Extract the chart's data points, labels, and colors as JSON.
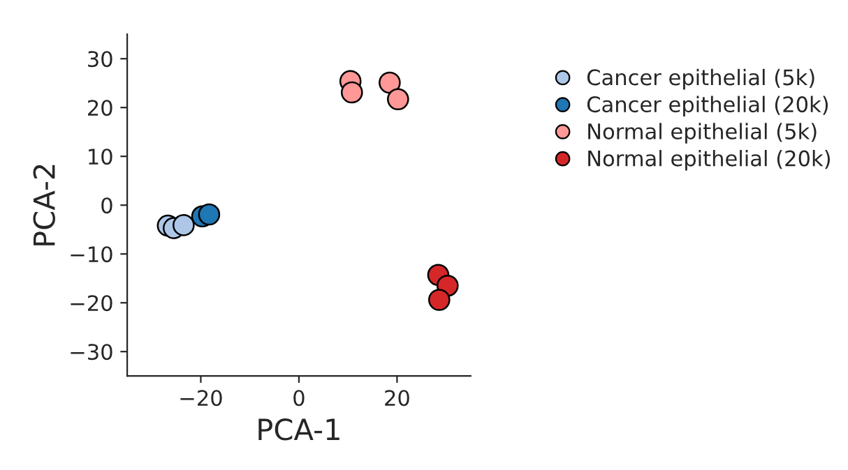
{
  "chart_data": {
    "type": "scatter",
    "xlabel": "PCA-1",
    "ylabel": "PCA-2",
    "xlim": [
      -35,
      35
    ],
    "ylim": [
      -35,
      35
    ],
    "xticks": [
      -20,
      0,
      20
    ],
    "yticks": [
      -30,
      -20,
      -10,
      0,
      10,
      20,
      30
    ],
    "grid": false,
    "legend": "right",
    "marker": "circle",
    "series": [
      {
        "name": "Cancer epithelial (5k)",
        "color": "#aec7e8",
        "x": [
          -26.7,
          -25.5,
          -23.5
        ],
        "values": [
          -4.2,
          -4.7,
          -4.1
        ]
      },
      {
        "name": "Cancer epithelial (20k)",
        "color": "#1f77b4",
        "x": [
          -19.7,
          -18.3
        ],
        "values": [
          -2.3,
          -1.9
        ]
      },
      {
        "name": "Normal epithelial (5k)",
        "color": "#ff9896",
        "x": [
          10.5,
          10.8,
          18.5,
          20.2
        ],
        "values": [
          25.4,
          23.1,
          25.1,
          21.7
        ]
      },
      {
        "name": "Normal epithelial (20k)",
        "color": "#d62728",
        "x": [
          28.4,
          30.3,
          28.6
        ],
        "values": [
          -14.3,
          -16.5,
          -19.4
        ]
      }
    ]
  }
}
